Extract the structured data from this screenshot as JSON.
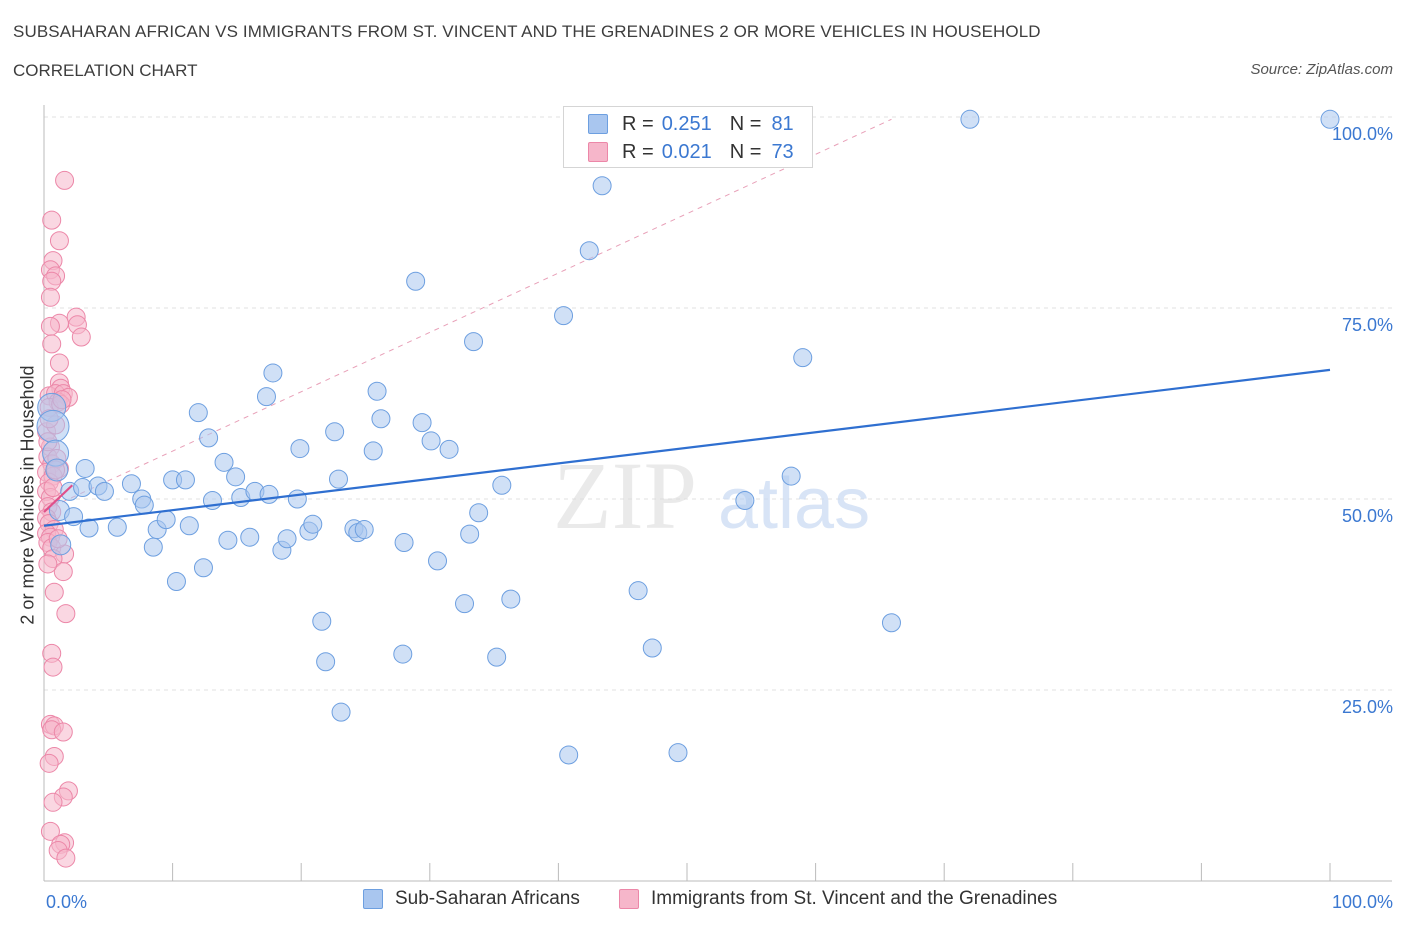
{
  "header": {
    "title": "SUBSAHARAN AFRICAN VS IMMIGRANTS FROM ST. VINCENT AND THE GRENADINES 2 OR MORE VEHICLES IN HOUSEHOLD",
    "subtitle": "CORRELATION CHART",
    "source": "Source: ZipAtlas.com"
  },
  "colors": {
    "blue_fill": "#a9c6ef",
    "blue_stroke": "#6d9fe0",
    "blue_line": "#2f6fd0",
    "pink_fill": "#f6b6ca",
    "pink_stroke": "#ec87a8",
    "pink_line": "#e0508a",
    "axis_text": "#3b78d1",
    "grid": "#e2e2e2"
  },
  "legend_top": {
    "rows": [
      {
        "r_label": "R =",
        "r_value": "0.251",
        "n_label": "N =",
        "n_value": "81"
      },
      {
        "r_label": "R =",
        "r_value": "0.021",
        "n_label": "N =",
        "n_value": "73"
      }
    ]
  },
  "legend_bottom": {
    "series1": "Sub-Saharan Africans",
    "series2": "Immigrants from St. Vincent and the Grenadines"
  },
  "watermark": {
    "zip": "ZIP",
    "atlas": "atlas"
  },
  "chart_data": {
    "type": "scatter",
    "title": "SUBSAHARAN AFRICAN VS IMMIGRANTS FROM ST. VINCENT AND THE GRENADINES 2 OR MORE VEHICLES IN HOUSEHOLD",
    "xlabel": "",
    "ylabel": "2 or more Vehicles in Household",
    "xlim": [
      0,
      100
    ],
    "ylim": [
      0,
      100
    ],
    "x_tick_labels": {
      "left": "0.0%",
      "right": "100.0%"
    },
    "y_ticks": [
      {
        "value": 25,
        "label": "25.0%"
      },
      {
        "value": 50,
        "label": "50.0%"
      },
      {
        "value": 75,
        "label": "75.0%"
      },
      {
        "value": 100,
        "label": "100.0%"
      }
    ],
    "grid": true,
    "legend_placement": "top-center",
    "series": [
      {
        "name": "Sub-Saharan Africans",
        "color": "blue",
        "r": 0.251,
        "n": 81,
        "trend": {
          "x": [
            0,
            100
          ],
          "y": [
            46.5,
            66.9
          ]
        },
        "points": [
          [
            0.6,
            62.0,
            14
          ],
          [
            0.7,
            59.5,
            16
          ],
          [
            0.9,
            56.0,
            13
          ],
          [
            1.0,
            53.8,
            11
          ],
          [
            1.2,
            48.5,
            10
          ],
          [
            1.3,
            44.0,
            10
          ],
          [
            2.0,
            51.0,
            9
          ],
          [
            2.3,
            47.7,
            9
          ],
          [
            3.0,
            51.5,
            9
          ],
          [
            3.2,
            54.0,
            9
          ],
          [
            3.5,
            46.2,
            9
          ],
          [
            4.2,
            51.7,
            9
          ],
          [
            4.7,
            51.0,
            9
          ],
          [
            6.8,
            52.0,
            9
          ],
          [
            7.6,
            50.0,
            9
          ],
          [
            7.8,
            49.2,
            9
          ],
          [
            8.5,
            43.7,
            9
          ],
          [
            8.8,
            46.0,
            9
          ],
          [
            9.5,
            47.3,
            9
          ],
          [
            10.0,
            52.5,
            9
          ],
          [
            10.3,
            39.2,
            9
          ],
          [
            11.0,
            52.5,
            9
          ],
          [
            11.3,
            46.5,
            9
          ],
          [
            12.0,
            61.3,
            9
          ],
          [
            12.4,
            41.0,
            9
          ],
          [
            12.8,
            58.0,
            9
          ],
          [
            13.1,
            49.8,
            9
          ],
          [
            14.0,
            54.8,
            9
          ],
          [
            14.3,
            44.6,
            9
          ],
          [
            14.9,
            52.9,
            9
          ],
          [
            15.3,
            50.2,
            9
          ],
          [
            16.0,
            45.0,
            9
          ],
          [
            16.4,
            51.0,
            9
          ],
          [
            17.3,
            63.4,
            9
          ],
          [
            17.5,
            50.6,
            9
          ],
          [
            17.8,
            66.5,
            9
          ],
          [
            18.5,
            43.3,
            9
          ],
          [
            18.9,
            44.8,
            9
          ],
          [
            19.7,
            50.0,
            9
          ],
          [
            19.9,
            56.6,
            9
          ],
          [
            20.6,
            45.8,
            9
          ],
          [
            20.9,
            46.7,
            9
          ],
          [
            21.6,
            34.0,
            9
          ],
          [
            21.9,
            28.7,
            9
          ],
          [
            22.6,
            58.8,
            9
          ],
          [
            22.9,
            52.6,
            9
          ],
          [
            23.1,
            22.1,
            9
          ],
          [
            24.1,
            46.1,
            9
          ],
          [
            24.4,
            45.6,
            9
          ],
          [
            24.9,
            46.0,
            9
          ],
          [
            25.6,
            56.3,
            9
          ],
          [
            25.9,
            64.1,
            9
          ],
          [
            26.2,
            60.5,
            9
          ],
          [
            27.9,
            29.7,
            9
          ],
          [
            28.0,
            44.3,
            9
          ],
          [
            28.9,
            78.5,
            9
          ],
          [
            29.4,
            60.0,
            9
          ],
          [
            30.1,
            57.6,
            9
          ],
          [
            30.6,
            41.9,
            9
          ],
          [
            31.5,
            56.5,
            9
          ],
          [
            32.7,
            36.3,
            9
          ],
          [
            33.1,
            45.4,
            9
          ],
          [
            33.4,
            70.6,
            9
          ],
          [
            33.8,
            48.2,
            9
          ],
          [
            35.2,
            29.3,
            9
          ],
          [
            35.6,
            51.8,
            9
          ],
          [
            36.3,
            36.9,
            9
          ],
          [
            40.4,
            74.0,
            9
          ],
          [
            40.8,
            16.5,
            9
          ],
          [
            42.4,
            82.5,
            9
          ],
          [
            43.4,
            91.0,
            9
          ],
          [
            46.2,
            38.0,
            9
          ],
          [
            47.3,
            30.5,
            9
          ],
          [
            49.3,
            16.8,
            9
          ],
          [
            54.5,
            49.8,
            9
          ],
          [
            58.1,
            53.0,
            9
          ],
          [
            59.0,
            68.5,
            9
          ],
          [
            65.9,
            33.8,
            9
          ],
          [
            72.0,
            99.7,
            9
          ],
          [
            100.0,
            99.7,
            9
          ],
          [
            5.7,
            46.3,
            9
          ]
        ]
      },
      {
        "name": "Immigrants from St. Vincent and the Grenadines",
        "color": "pink",
        "r": 0.021,
        "n": 73,
        "trend": {
          "x": [
            0,
            2.2
          ],
          "y": [
            48.3,
            51.8
          ]
        },
        "reference_line": {
          "x": [
            0,
            65.9
          ],
          "y": [
            48.5,
            99.7
          ]
        },
        "points": [
          [
            1.6,
            91.7,
            9
          ],
          [
            0.6,
            86.5,
            9
          ],
          [
            1.2,
            83.8,
            9
          ],
          [
            0.7,
            81.2,
            9
          ],
          [
            0.5,
            80.0,
            9
          ],
          [
            0.9,
            79.2,
            9
          ],
          [
            0.6,
            78.5,
            9
          ],
          [
            0.5,
            76.4,
            9
          ],
          [
            2.5,
            73.8,
            9
          ],
          [
            2.6,
            72.8,
            9
          ],
          [
            1.2,
            73.0,
            9
          ],
          [
            0.5,
            72.6,
            9
          ],
          [
            2.9,
            71.2,
            9
          ],
          [
            0.6,
            70.3,
            9
          ],
          [
            1.2,
            67.8,
            9
          ],
          [
            1.2,
            65.2,
            9
          ],
          [
            1.3,
            64.5,
            9
          ],
          [
            0.4,
            63.5,
            9
          ],
          [
            0.9,
            63.8,
            9
          ],
          [
            1.5,
            63.8,
            9
          ],
          [
            1.9,
            63.3,
            9
          ],
          [
            1.1,
            62.7,
            9
          ],
          [
            0.4,
            62.0,
            9
          ],
          [
            1.3,
            62.4,
            9
          ],
          [
            1.4,
            63.0,
            9
          ],
          [
            0.2,
            58.8,
            9
          ],
          [
            0.5,
            56.8,
            9
          ],
          [
            0.3,
            55.5,
            9
          ],
          [
            0.6,
            54.6,
            9
          ],
          [
            1.2,
            54.0,
            9
          ],
          [
            0.2,
            53.5,
            9
          ],
          [
            0.7,
            53.0,
            9
          ],
          [
            0.4,
            52.2,
            9
          ],
          [
            0.2,
            51.0,
            9
          ],
          [
            0.5,
            50.2,
            9
          ],
          [
            0.3,
            49.0,
            9
          ],
          [
            0.6,
            48.3,
            9
          ],
          [
            0.2,
            47.5,
            9
          ],
          [
            0.4,
            46.8,
            9
          ],
          [
            0.8,
            46.0,
            9
          ],
          [
            0.2,
            45.5,
            9
          ],
          [
            0.5,
            45.0,
            9
          ],
          [
            0.3,
            44.3,
            9
          ],
          [
            0.6,
            43.6,
            9
          ],
          [
            1.6,
            42.8,
            9
          ],
          [
            0.7,
            42.2,
            9
          ],
          [
            1.5,
            40.5,
            9
          ],
          [
            0.8,
            37.8,
            9
          ],
          [
            1.7,
            35.0,
            9
          ],
          [
            0.6,
            29.8,
            9
          ],
          [
            0.7,
            28.0,
            9
          ],
          [
            0.5,
            20.5,
            9
          ],
          [
            0.8,
            20.3,
            9
          ],
          [
            0.6,
            19.8,
            9
          ],
          [
            1.5,
            19.5,
            9
          ],
          [
            0.8,
            16.3,
            9
          ],
          [
            0.4,
            15.4,
            9
          ],
          [
            1.9,
            11.8,
            9
          ],
          [
            1.5,
            11.0,
            9
          ],
          [
            0.7,
            10.3,
            9
          ],
          [
            0.5,
            6.5,
            9
          ],
          [
            1.6,
            5.0,
            9
          ],
          [
            1.3,
            4.8,
            9
          ],
          [
            1.1,
            4.0,
            9
          ],
          [
            1.7,
            3.0,
            9
          ],
          [
            0.3,
            57.5,
            9
          ],
          [
            0.9,
            59.7,
            9
          ],
          [
            1.0,
            55.3,
            9
          ],
          [
            0.4,
            60.5,
            9
          ],
          [
            0.7,
            51.5,
            9
          ],
          [
            1.1,
            44.8,
            9
          ],
          [
            0.3,
            41.5,
            9
          ],
          [
            0.9,
            53.8,
            9
          ]
        ]
      }
    ]
  }
}
